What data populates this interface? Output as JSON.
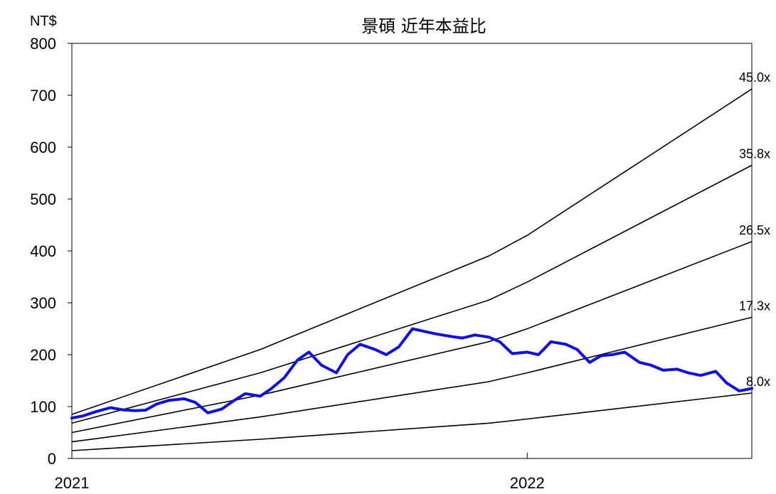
{
  "chart_data": {
    "type": "line",
    "title": "景碩 近年本益比",
    "ylabel": "NT$",
    "xlabel": "",
    "ylim": [
      0,
      800
    ],
    "yticks": [
      "0",
      "100",
      "200",
      "300",
      "400",
      "500",
      "600",
      "700",
      "800"
    ],
    "xticks": [
      {
        "label": "2021",
        "x": "2021-01-01"
      },
      {
        "label": "2022",
        "x": "2022-01-01"
      }
    ],
    "xlim": [
      "2021-01-01",
      "2022-06-30"
    ],
    "grid": false,
    "colors": {
      "price": "#1010e0",
      "bands": "#000000"
    },
    "price_series": {
      "x": [
        "2021-01-01",
        "2021-01-10",
        "2021-01-20",
        "2021-02-01",
        "2021-02-10",
        "2021-02-20",
        "2021-03-01",
        "2021-03-10",
        "2021-03-20",
        "2021-04-01",
        "2021-04-10",
        "2021-04-20",
        "2021-05-01",
        "2021-05-10",
        "2021-05-20",
        "2021-06-01",
        "2021-06-10",
        "2021-06-20",
        "2021-07-01",
        "2021-07-10",
        "2021-07-20",
        "2021-08-01",
        "2021-08-10",
        "2021-08-20",
        "2021-09-01",
        "2021-09-10",
        "2021-09-20",
        "2021-10-01",
        "2021-10-10",
        "2021-10-20",
        "2021-11-01",
        "2021-11-10",
        "2021-11-20",
        "2021-12-01",
        "2021-12-10",
        "2021-12-20",
        "2022-01-01",
        "2022-01-10",
        "2022-01-20",
        "2022-02-01",
        "2022-02-10",
        "2022-02-20",
        "2022-03-01",
        "2022-03-10",
        "2022-03-20",
        "2022-04-01",
        "2022-04-10",
        "2022-04-20",
        "2022-05-01",
        "2022-05-10",
        "2022-05-20",
        "2022-06-01",
        "2022-06-10",
        "2022-06-20",
        "2022-06-30"
      ],
      "y": [
        78,
        82,
        90,
        98,
        94,
        92,
        93,
        105,
        112,
        115,
        108,
        88,
        95,
        110,
        125,
        120,
        135,
        155,
        190,
        205,
        180,
        165,
        200,
        220,
        210,
        200,
        215,
        250,
        245,
        240,
        235,
        232,
        238,
        234,
        225,
        202,
        205,
        200,
        225,
        220,
        210,
        185,
        198,
        200,
        205,
        185,
        180,
        170,
        172,
        165,
        160,
        168,
        145,
        130,
        135
      ]
    },
    "series": [
      {
        "name": "45.0x",
        "x": [
          "2021-01-01",
          "2021-06-01",
          "2021-12-01",
          "2022-01-01",
          "2022-06-30"
        ],
        "y": [
          85,
          210,
          390,
          430,
          712
        ]
      },
      {
        "name": "35.8x",
        "x": [
          "2021-01-01",
          "2021-06-01",
          "2021-12-01",
          "2022-01-01",
          "2022-06-30"
        ],
        "y": [
          68,
          165,
          305,
          340,
          565
        ]
      },
      {
        "name": "26.5x",
        "x": [
          "2021-01-01",
          "2021-06-01",
          "2021-12-01",
          "2022-01-01",
          "2022-06-30"
        ],
        "y": [
          50,
          122,
          225,
          250,
          418
        ]
      },
      {
        "name": "17.3x",
        "x": [
          "2021-01-01",
          "2021-06-01",
          "2021-12-01",
          "2022-01-01",
          "2022-06-30"
        ],
        "y": [
          32,
          80,
          148,
          165,
          272
        ]
      },
      {
        "name": "8.0x",
        "x": [
          "2021-01-01",
          "2021-06-01",
          "2021-12-01",
          "2022-01-01",
          "2022-06-30"
        ],
        "y": [
          15,
          37,
          68,
          76,
          126
        ]
      }
    ]
  }
}
